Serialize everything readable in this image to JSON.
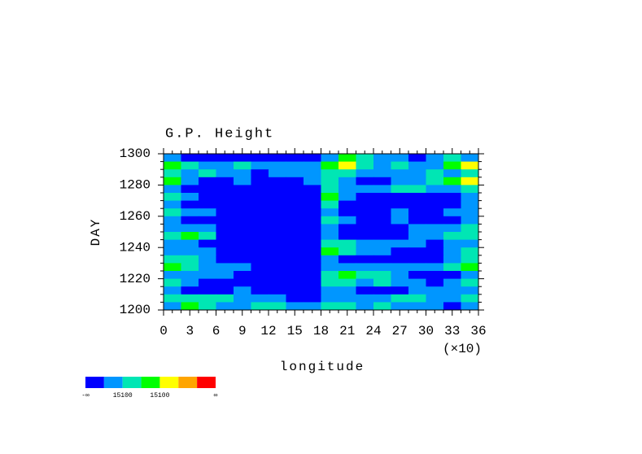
{
  "chart_data": {
    "type": "heatmap",
    "title": "G.P. Height",
    "x_label": "longitude",
    "y_label": "DAY",
    "x_multiplier": "(×10)",
    "xlim": [
      0,
      36
    ],
    "xticks": [
      0,
      3,
      6,
      9,
      12,
      15,
      18,
      21,
      24,
      27,
      30,
      33,
      36
    ],
    "ylim": [
      1200,
      1300
    ],
    "yticks": [
      1200,
      1220,
      1240,
      1260,
      1280,
      1300
    ],
    "colorbar": {
      "colors": [
        "#0000ff",
        "#0096ff",
        "#00e6b4",
        "#00ff00",
        "#ffff00",
        "#ffa500",
        "#ff0000"
      ],
      "labels": [
        "-∞",
        "15100",
        "15100",
        "∞"
      ]
    },
    "z": [
      [
        1,
        0,
        0,
        0,
        0,
        0,
        0,
        0,
        0,
        1,
        3,
        2,
        1,
        1,
        0,
        1,
        2,
        1
      ],
      [
        3,
        2,
        1,
        1,
        2,
        1,
        1,
        1,
        1,
        3,
        4,
        2,
        1,
        2,
        1,
        1,
        3,
        4
      ],
      [
        2,
        1,
        2,
        1,
        1,
        0,
        1,
        1,
        1,
        2,
        2,
        1,
        1,
        1,
        1,
        2,
        1,
        2
      ],
      [
        3,
        1,
        0,
        0,
        1,
        0,
        0,
        0,
        1,
        2,
        1,
        0,
        0,
        1,
        1,
        2,
        3,
        4
      ],
      [
        1,
        0,
        0,
        0,
        0,
        0,
        0,
        0,
        0,
        2,
        1,
        1,
        1,
        2,
        2,
        1,
        1,
        2
      ],
      [
        2,
        1,
        0,
        0,
        0,
        0,
        0,
        0,
        0,
        3,
        1,
        0,
        0,
        0,
        0,
        0,
        0,
        1
      ],
      [
        1,
        0,
        0,
        0,
        0,
        0,
        0,
        0,
        0,
        2,
        0,
        0,
        0,
        0,
        0,
        0,
        0,
        1
      ],
      [
        2,
        1,
        1,
        0,
        0,
        0,
        0,
        0,
        0,
        1,
        0,
        0,
        0,
        1,
        0,
        0,
        1,
        1
      ],
      [
        1,
        0,
        0,
        0,
        0,
        0,
        0,
        0,
        0,
        2,
        1,
        0,
        0,
        1,
        0,
        0,
        0,
        1
      ],
      [
        1,
        1,
        1,
        0,
        0,
        0,
        0,
        0,
        0,
        1,
        0,
        0,
        0,
        0,
        1,
        1,
        1,
        2
      ],
      [
        2,
        3,
        2,
        0,
        0,
        0,
        0,
        0,
        0,
        1,
        0,
        0,
        0,
        0,
        1,
        1,
        2,
        2
      ],
      [
        1,
        1,
        0,
        0,
        0,
        0,
        0,
        0,
        0,
        2,
        2,
        1,
        1,
        1,
        1,
        0,
        1,
        1
      ],
      [
        1,
        1,
        1,
        0,
        0,
        0,
        0,
        0,
        0,
        3,
        2,
        1,
        1,
        0,
        0,
        0,
        1,
        2
      ],
      [
        2,
        2,
        1,
        0,
        0,
        0,
        0,
        0,
        0,
        1,
        0,
        0,
        0,
        0,
        0,
        0,
        1,
        2
      ],
      [
        3,
        2,
        1,
        1,
        1,
        0,
        0,
        0,
        0,
        1,
        1,
        1,
        1,
        1,
        1,
        1,
        2,
        3
      ],
      [
        1,
        1,
        1,
        1,
        0,
        0,
        0,
        0,
        0,
        2,
        3,
        2,
        2,
        1,
        0,
        0,
        0,
        1
      ],
      [
        2,
        1,
        0,
        0,
        0,
        0,
        0,
        0,
        0,
        2,
        2,
        1,
        2,
        1,
        1,
        0,
        1,
        2
      ],
      [
        1,
        0,
        0,
        0,
        1,
        0,
        0,
        0,
        0,
        1,
        1,
        0,
        0,
        0,
        1,
        1,
        1,
        1
      ],
      [
        2,
        2,
        2,
        2,
        1,
        1,
        1,
        0,
        0,
        1,
        1,
        1,
        1,
        2,
        2,
        1,
        1,
        2
      ],
      [
        1,
        3,
        2,
        1,
        1,
        2,
        2,
        1,
        1,
        2,
        2,
        1,
        2,
        1,
        1,
        1,
        0,
        1
      ]
    ]
  }
}
